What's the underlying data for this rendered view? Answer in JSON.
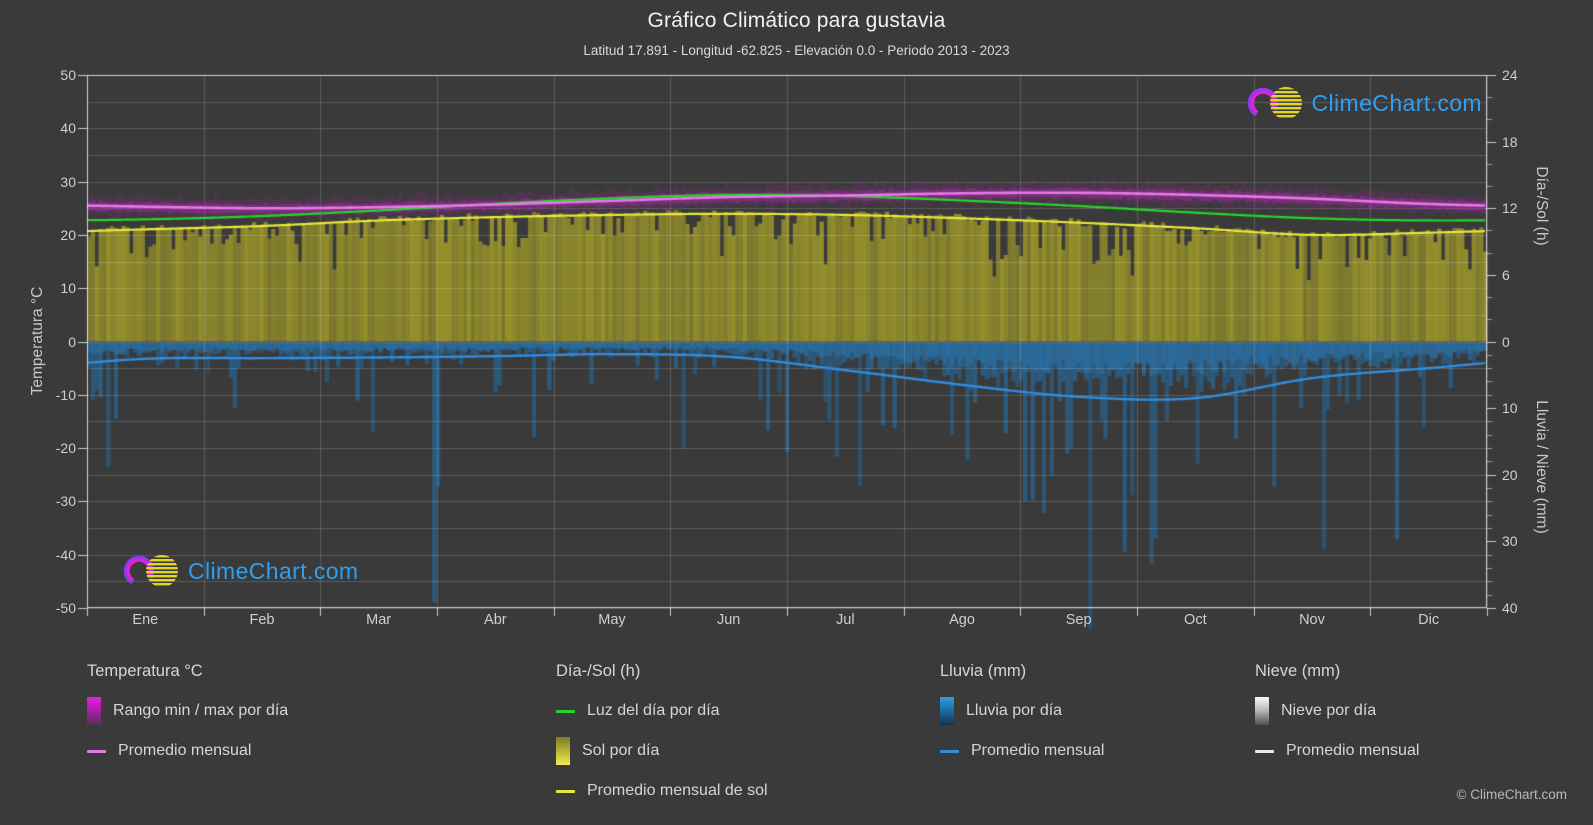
{
  "header": {
    "title": "Gráfico Climático para gustavia",
    "subtitle": "Latitud 17.891 - Longitud -62.825 - Elevación 0.0 - Periodo 2013 - 2023"
  },
  "watermark": {
    "text": "ClimeChart.com"
  },
  "copyright": "© ClimeChart.com",
  "axes": {
    "left": {
      "title": "Temperatura °C",
      "ticks": [
        50,
        40,
        30,
        20,
        10,
        0,
        -10,
        -20,
        -30,
        -40,
        -50
      ]
    },
    "right_day": {
      "title": "Día-/Sol (h)",
      "ticks": [
        24,
        18,
        12,
        6,
        0
      ]
    },
    "right_rain": {
      "title": "Lluvia / Nieve (mm)",
      "ticks": [
        10,
        20,
        30,
        40
      ]
    },
    "x": {
      "months": [
        "Ene",
        "Feb",
        "Mar",
        "Abr",
        "May",
        "Jun",
        "Jul",
        "Ago",
        "Sep",
        "Oct",
        "Nov",
        "Dic"
      ]
    }
  },
  "legend": {
    "groups": [
      {
        "title": "Temperatura °C",
        "items": [
          {
            "swatch": "gradient-magenta",
            "label": "Rango min / max por día"
          },
          {
            "swatch": "line-magenta",
            "label": "Promedio mensual"
          }
        ]
      },
      {
        "title": "Día-/Sol (h)",
        "items": [
          {
            "swatch": "line-green",
            "label": "Luz del día por día"
          },
          {
            "swatch": "gradient-yellow",
            "label": "Sol por día"
          },
          {
            "swatch": "line-yellow",
            "label": "Promedio mensual de sol"
          }
        ]
      },
      {
        "title": "Lluvia (mm)",
        "items": [
          {
            "swatch": "gradient-blue",
            "label": "Lluvia por día"
          },
          {
            "swatch": "line-blue",
            "label": "Promedio mensual"
          }
        ]
      },
      {
        "title": "Nieve (mm)",
        "items": [
          {
            "swatch": "gradient-white",
            "label": "Nieve por día"
          },
          {
            "swatch": "line-white",
            "label": "Promedio mensual"
          }
        ]
      }
    ]
  },
  "colors": {
    "background": "#3a3a3a",
    "grid": "#6a6a6a",
    "temp_band": "#cc22cc",
    "temp_avg_line": "#e878e8",
    "daylight_line": "#2ad42a",
    "sun_fill": "#9e982a",
    "sun_avg_line": "#e9e93c",
    "rain_bar": "#2270ab",
    "rain_avg_line": "#2e8ee2",
    "snow_bar": "#e0e0e0",
    "snow_avg_line": "#e9e9e9",
    "watermark_text": "#2da0f0",
    "text": "#d6d6d6"
  },
  "chart_data": {
    "type": "climate-composite",
    "title": "Gráfico Climático para gustavia",
    "location": {
      "latitude": 17.891,
      "longitude": -62.825,
      "elevation": 0.0,
      "period": "2013 - 2023"
    },
    "categories": [
      "Ene",
      "Feb",
      "Mar",
      "Abr",
      "May",
      "Jun",
      "Jul",
      "Ago",
      "Sep",
      "Oct",
      "Nov",
      "Dic"
    ],
    "axis_ranges": {
      "temperature_c": [
        -50,
        50
      ],
      "day_sun_h": [
        0,
        24
      ],
      "rain_snow_mm": [
        0,
        40
      ],
      "rain_axis_inverted_downward": true
    },
    "monthly": {
      "temp_avg_c": [
        25.3,
        25.0,
        25.2,
        25.7,
        26.4,
        27.1,
        27.4,
        27.8,
        27.9,
        27.5,
        26.8,
        25.8
      ],
      "temp_max_daily_c": [
        26.8,
        26.5,
        26.7,
        27.2,
        27.9,
        28.6,
        28.9,
        29.3,
        29.4,
        29.0,
        28.3,
        27.3
      ],
      "temp_min_daily_c": [
        23.8,
        23.5,
        23.7,
        24.2,
        24.9,
        25.6,
        25.9,
        26.3,
        26.4,
        26.0,
        25.3,
        24.3
      ],
      "daylight_h": [
        11.0,
        11.3,
        11.8,
        12.4,
        12.9,
        13.2,
        13.1,
        12.7,
        12.2,
        11.6,
        11.1,
        10.9
      ],
      "sunshine_h": [
        10.1,
        10.4,
        10.9,
        11.2,
        11.4,
        11.5,
        11.4,
        11.1,
        10.7,
        10.2,
        9.6,
        9.8
      ],
      "rain_mm_per_day": [
        2.6,
        2.5,
        2.4,
        2.2,
        1.9,
        2.3,
        4.3,
        6.5,
        8.3,
        8.5,
        5.5,
        4.0
      ],
      "snow_mm_per_day": [
        0,
        0,
        0,
        0,
        0,
        0,
        0,
        0,
        0,
        0,
        0,
        0
      ]
    },
    "legend_position": "bottom",
    "grid": true
  }
}
